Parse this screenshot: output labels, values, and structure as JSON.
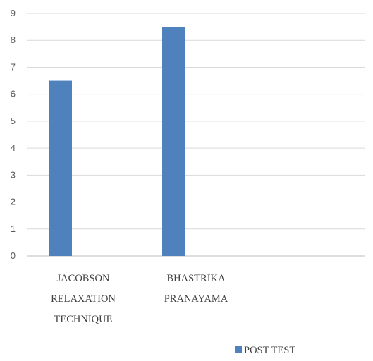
{
  "chart_data": {
    "type": "bar",
    "categories": [
      [
        "JACOBSON",
        "RELAXATION",
        "TECHNIQUE"
      ],
      [
        "BHASTRIKA",
        "PRANAYAMA"
      ],
      []
    ],
    "series": [
      {
        "name": "POST TEST",
        "values": [
          6.5,
          8.5,
          null
        ],
        "color": "#4f81bd"
      }
    ],
    "ylim": [
      0,
      9
    ],
    "yticks": [
      0,
      1,
      2,
      3,
      4,
      5,
      6,
      7,
      8,
      9
    ],
    "grid": true,
    "legend": "bottom"
  }
}
